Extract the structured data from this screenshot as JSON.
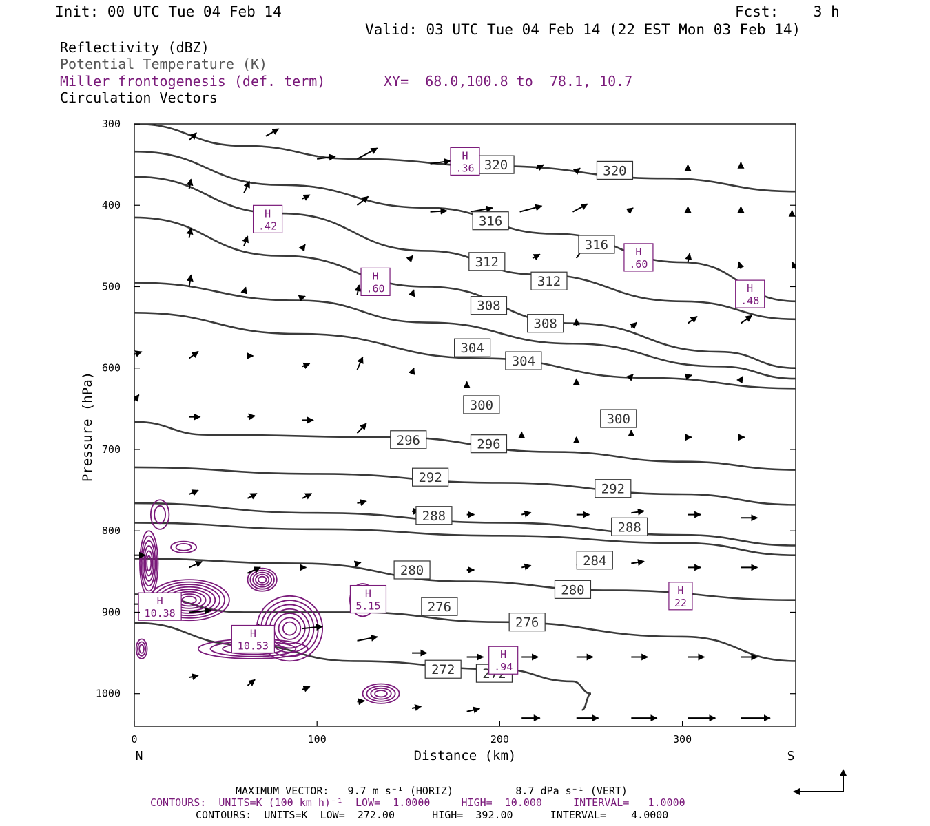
{
  "header": {
    "init": "Init: 00 UTC Tue 04 Feb 14",
    "fcst": "Fcst:    3 h",
    "valid": "Valid: 03 UTC Tue 04 Feb 14 (22 EST Mon 03 Feb 14)"
  },
  "legend": {
    "line1": "Reflectivity (dBZ)",
    "line2": "Potential Temperature (K)",
    "line3": "Miller frontogenesis (def. term)",
    "xy": "XY=  68.0,100.8 to  78.1, 10.7",
    "line4": "Circulation Vectors"
  },
  "colors": {
    "theta": "#3a3a3a",
    "fronto": "#7a1a7a",
    "vectors": "#000000"
  },
  "chart_data": {
    "type": "line",
    "xlabel": "Distance (km)",
    "ylabel": "Pressure (hPa)",
    "xlim": [
      0,
      362
    ],
    "ylim": [
      1040,
      300
    ],
    "x_ticks": [
      "0",
      "100",
      "200",
      "300"
    ],
    "y_ticks": [
      "300",
      "400",
      "500",
      "600",
      "700",
      "800",
      "900",
      "1000"
    ],
    "left_end_label": "N",
    "right_end_label": "S",
    "theta_contours": [
      {
        "name": "320",
        "points": [
          [
            0,
            300
          ],
          [
            60,
            327
          ],
          [
            120,
            343
          ],
          [
            200,
            352
          ],
          [
            290,
            367
          ],
          [
            362,
            383
          ]
        ]
      },
      {
        "name": "316",
        "points": [
          [
            0,
            334
          ],
          [
            80,
            375
          ],
          [
            160,
            403
          ],
          [
            230,
            435
          ],
          [
            300,
            470
          ],
          [
            362,
            518
          ]
        ]
      },
      {
        "name": "312",
        "points": [
          [
            0,
            365
          ],
          [
            80,
            410
          ],
          [
            160,
            456
          ],
          [
            220,
            485
          ],
          [
            300,
            518
          ],
          [
            362,
            540
          ]
        ]
      },
      {
        "name": "308",
        "points": [
          [
            0,
            415
          ],
          [
            80,
            462
          ],
          [
            160,
            500
          ],
          [
            240,
            545
          ],
          [
            320,
            580
          ],
          [
            362,
            600
          ]
        ]
      },
      {
        "name": "304",
        "points": [
          [
            0,
            495
          ],
          [
            90,
            517
          ],
          [
            160,
            544
          ],
          [
            240,
            570
          ],
          [
            320,
            598
          ],
          [
            362,
            613
          ]
        ]
      },
      {
        "name": "300",
        "points": [
          [
            0,
            532
          ],
          [
            90,
            558
          ],
          [
            190,
            588
          ],
          [
            280,
            612
          ],
          [
            362,
            625
          ]
        ]
      },
      {
        "name": "296",
        "points": [
          [
            0,
            666
          ],
          [
            40,
            682
          ],
          [
            140,
            685
          ],
          [
            230,
            703
          ],
          [
            300,
            715
          ],
          [
            362,
            725
          ]
        ]
      },
      {
        "name": "292",
        "points": [
          [
            0,
            722
          ],
          [
            100,
            730
          ],
          [
            200,
            741
          ],
          [
            300,
            755
          ],
          [
            362,
            768
          ]
        ]
      },
      {
        "name": "288",
        "points": [
          [
            0,
            766
          ],
          [
            100,
            778
          ],
          [
            200,
            790
          ],
          [
            300,
            805
          ],
          [
            362,
            818
          ]
        ]
      },
      {
        "name": "284",
        "points": [
          [
            0,
            790
          ],
          [
            100,
            798
          ],
          [
            200,
            806
          ],
          [
            300,
            815
          ],
          [
            362,
            830
          ]
        ]
      },
      {
        "name": "280",
        "points": [
          [
            0,
            834
          ],
          [
            90,
            840
          ],
          [
            180,
            862
          ],
          [
            260,
            873
          ],
          [
            362,
            885
          ]
        ]
      },
      {
        "name": "276",
        "points": [
          [
            0,
            878
          ],
          [
            60,
            900
          ],
          [
            120,
            900
          ],
          [
            200,
            912
          ],
          [
            300,
            930
          ],
          [
            362,
            960
          ]
        ]
      },
      {
        "name": "272",
        "points": [
          [
            0,
            913
          ],
          [
            60,
            940
          ],
          [
            120,
            960
          ],
          [
            200,
            970
          ],
          [
            240,
            985
          ],
          [
            250,
            1000
          ],
          [
            245,
            1020
          ]
        ]
      }
    ],
    "theta_labels": [
      {
        "text": "320",
        "x": 198,
        "y": 350
      },
      {
        "text": "320",
        "x": 263,
        "y": 357
      },
      {
        "text": "316",
        "x": 195,
        "y": 419
      },
      {
        "text": "316",
        "x": 253,
        "y": 448
      },
      {
        "text": "312",
        "x": 193,
        "y": 469
      },
      {
        "text": "312",
        "x": 227,
        "y": 493
      },
      {
        "text": "308",
        "x": 194,
        "y": 523
      },
      {
        "text": "308",
        "x": 225,
        "y": 545
      },
      {
        "text": "304",
        "x": 185,
        "y": 575
      },
      {
        "text": "304",
        "x": 213,
        "y": 591
      },
      {
        "text": "300",
        "x": 190,
        "y": 645
      },
      {
        "text": "300",
        "x": 265,
        "y": 662
      },
      {
        "text": "296",
        "x": 150,
        "y": 688
      },
      {
        "text": "296",
        "x": 194,
        "y": 693
      },
      {
        "text": "292",
        "x": 162,
        "y": 734
      },
      {
        "text": "292",
        "x": 262,
        "y": 748
      },
      {
        "text": "288",
        "x": 164,
        "y": 781
      },
      {
        "text": "288",
        "x": 271,
        "y": 795
      },
      {
        "text": "284",
        "x": 252,
        "y": 836
      },
      {
        "text": "280",
        "x": 152,
        "y": 848
      },
      {
        "text": "280",
        "x": 240,
        "y": 872
      },
      {
        "text": "276",
        "x": 167,
        "y": 893
      },
      {
        "text": "276",
        "x": 215,
        "y": 912
      },
      {
        "text": "272",
        "x": 169,
        "y": 970
      },
      {
        "text": "272",
        "x": 197,
        "y": 975
      }
    ],
    "fronto_maxima": [
      {
        "label": "H",
        "value": ".36",
        "x": 181,
        "y": 346
      },
      {
        "label": "H",
        "value": ".42",
        "x": 73,
        "y": 417
      },
      {
        "label": "H",
        "value": ".60",
        "x": 132,
        "y": 494
      },
      {
        "label": "H",
        "value": ".60",
        "x": 276,
        "y": 464
      },
      {
        "label": "H",
        "value": ".48",
        "x": 337,
        "y": 509
      },
      {
        "label": "H",
        "value": "10.38",
        "x": 14,
        "y": 893
      },
      {
        "label": "H",
        "value": "5.15",
        "x": 128,
        "y": 884
      },
      {
        "label": "H",
        "value": "10.53",
        "x": 65,
        "y": 933
      },
      {
        "label": "H",
        "value": ".94",
        "x": 202,
        "y": 959
      },
      {
        "label": "H",
        "value": "22",
        "x": 299,
        "y": 880
      }
    ],
    "fronto_rings": [
      {
        "cx": 8,
        "cy": 840,
        "rx": 5,
        "ry": 40,
        "n": 6
      },
      {
        "cx": 30,
        "cy": 885,
        "rx": 22,
        "ry": 25,
        "n": 8
      },
      {
        "cx": 70,
        "cy": 860,
        "rx": 8,
        "ry": 14,
        "n": 5
      },
      {
        "cx": 85,
        "cy": 920,
        "rx": 18,
        "ry": 40,
        "n": 7
      },
      {
        "cx": 65,
        "cy": 945,
        "rx": 30,
        "ry": 12,
        "n": 4
      },
      {
        "cx": 125,
        "cy": 885,
        "rx": 7,
        "ry": 20,
        "n": 4
      },
      {
        "cx": 135,
        "cy": 1000,
        "rx": 10,
        "ry": 12,
        "n": 4
      },
      {
        "cx": 14,
        "cy": 780,
        "rx": 5,
        "ry": 18,
        "n": 2
      },
      {
        "cx": 27,
        "cy": 820,
        "rx": 7,
        "ry": 7,
        "n": 2
      },
      {
        "cx": 4,
        "cy": 945,
        "rx": 3,
        "ry": 12,
        "n": 3
      }
    ],
    "vectors": [
      [
        30,
        320,
        8,
        -15
      ],
      [
        72,
        315,
        14,
        -15
      ],
      [
        100,
        343,
        20,
        -5
      ],
      [
        122,
        343,
        22,
        -22
      ],
      [
        162,
        349,
        22,
        -6
      ],
      [
        188,
        352,
        18,
        -6
      ],
      [
        220,
        355,
        8,
        -8
      ],
      [
        242,
        358,
        4,
        -6
      ],
      [
        303,
        355,
        0,
        -8
      ],
      [
        332,
        352,
        0,
        -8
      ],
      [
        30,
        380,
        2,
        -20
      ],
      [
        60,
        385,
        6,
        -24
      ],
      [
        92,
        392,
        8,
        -8
      ],
      [
        122,
        400,
        12,
        -18
      ],
      [
        162,
        408,
        18,
        -2
      ],
      [
        184,
        408,
        24,
        -8
      ],
      [
        211,
        408,
        24,
        -12
      ],
      [
        240,
        408,
        16,
        -16
      ],
      [
        270,
        408,
        6,
        -8
      ],
      [
        303,
        410,
        0,
        -14
      ],
      [
        332,
        410,
        0,
        -14
      ],
      [
        360,
        410,
        0,
        -6
      ],
      [
        30,
        440,
        2,
        -20
      ],
      [
        60,
        450,
        4,
        -20
      ],
      [
        92,
        453,
        3,
        -8
      ],
      [
        152,
        463,
        1,
        -2
      ],
      [
        218,
        465,
        8,
        -8
      ],
      [
        242,
        465,
        10,
        -28
      ],
      [
        278,
        470,
        8,
        -10
      ],
      [
        303,
        470,
        2,
        -18
      ],
      [
        332,
        478,
        -2,
        -14
      ],
      [
        362,
        478,
        -4,
        -14
      ],
      [
        30,
        500,
        2,
        -24
      ],
      [
        60,
        508,
        2,
        -12
      ],
      [
        92,
        513,
        3,
        -2
      ],
      [
        122,
        510,
        2,
        -20
      ],
      [
        152,
        510,
        2,
        -10
      ],
      [
        228,
        540,
        2,
        -8
      ],
      [
        242,
        548,
        0,
        -14
      ],
      [
        272,
        550,
        6,
        -10
      ],
      [
        303,
        545,
        10,
        -14
      ],
      [
        332,
        545,
        12,
        -16
      ],
      [
        0,
        583,
        8,
        -5
      ],
      [
        30,
        588,
        10,
        -14
      ],
      [
        62,
        585,
        6,
        0
      ],
      [
        92,
        598,
        8,
        -6
      ],
      [
        122,
        602,
        6,
        -26
      ],
      [
        152,
        606,
        2,
        -10
      ],
      [
        182,
        618,
        0,
        -2
      ],
      [
        242,
        618,
        0,
        -8
      ],
      [
        272,
        610,
        2,
        -4
      ],
      [
        303,
        610,
        4,
        -2
      ],
      [
        332,
        614,
        2,
        -6
      ],
      [
        0,
        640,
        5,
        -12
      ],
      [
        30,
        660,
        12,
        0
      ],
      [
        62,
        660,
        8,
        -2
      ],
      [
        92,
        664,
        12,
        0
      ],
      [
        122,
        680,
        10,
        -20
      ],
      [
        212,
        681,
        0,
        -4
      ],
      [
        242,
        686,
        0,
        -2
      ],
      [
        272,
        680,
        0,
        -6
      ],
      [
        303,
        685,
        4,
        0
      ],
      [
        332,
        685,
        4,
        0
      ],
      [
        30,
        755,
        10,
        -8
      ],
      [
        62,
        760,
        10,
        -10
      ],
      [
        92,
        760,
        10,
        -10
      ],
      [
        122,
        766,
        10,
        -4
      ],
      [
        152,
        776,
        8,
        0
      ],
      [
        182,
        780,
        8,
        0
      ],
      [
        212,
        780,
        10,
        -4
      ],
      [
        242,
        780,
        14,
        0
      ],
      [
        272,
        778,
        14,
        -4
      ],
      [
        303,
        780,
        14,
        0
      ],
      [
        332,
        784,
        18,
        0
      ],
      [
        0,
        830,
        12,
        0
      ],
      [
        30,
        845,
        14,
        -12
      ],
      [
        62,
        852,
        14,
        -12
      ],
      [
        92,
        845,
        4,
        0
      ],
      [
        122,
        840,
        4,
        -2
      ],
      [
        182,
        848,
        8,
        0
      ],
      [
        212,
        845,
        10,
        -4
      ],
      [
        242,
        842,
        14,
        -4
      ],
      [
        272,
        840,
        14,
        -4
      ],
      [
        303,
        845,
        14,
        0
      ],
      [
        332,
        845,
        18,
        0
      ],
      [
        0,
        890,
        14,
        0
      ],
      [
        30,
        900,
        24,
        -4
      ],
      [
        62,
        920,
        18,
        -4
      ],
      [
        92,
        920,
        22,
        -4
      ],
      [
        122,
        935,
        22,
        -8
      ],
      [
        152,
        950,
        16,
        0
      ],
      [
        182,
        955,
        18,
        0
      ],
      [
        212,
        955,
        18,
        0
      ],
      [
        242,
        955,
        18,
        0
      ],
      [
        272,
        955,
        18,
        0
      ],
      [
        303,
        955,
        18,
        0
      ],
      [
        332,
        955,
        18,
        0
      ],
      [
        30,
        980,
        10,
        -4
      ],
      [
        62,
        990,
        8,
        -12
      ],
      [
        92,
        995,
        8,
        -6
      ],
      [
        122,
        1010,
        8,
        -2
      ],
      [
        152,
        1018,
        10,
        -4
      ],
      [
        182,
        1022,
        14,
        -6
      ],
      [
        212,
        1030,
        20,
        0
      ],
      [
        242,
        1030,
        24,
        0
      ],
      [
        272,
        1030,
        28,
        0
      ],
      [
        303,
        1030,
        30,
        0
      ],
      [
        332,
        1030,
        32,
        0
      ]
    ]
  },
  "footer": {
    "line1": "MAXIMUM VECTOR:   9.7 m s⁻¹ (HORIZ)          8.7 dPa s⁻¹ (VERT)",
    "line2": "CONTOURS:  UNITS=K (100 km h)⁻¹  LOW=  1.0000     HIGH=  10.000     INTERVAL=   1.0000",
    "line3": "CONTOURS:  UNITS=K  LOW=  272.00      HIGH=  392.00      INTERVAL=    4.0000"
  }
}
